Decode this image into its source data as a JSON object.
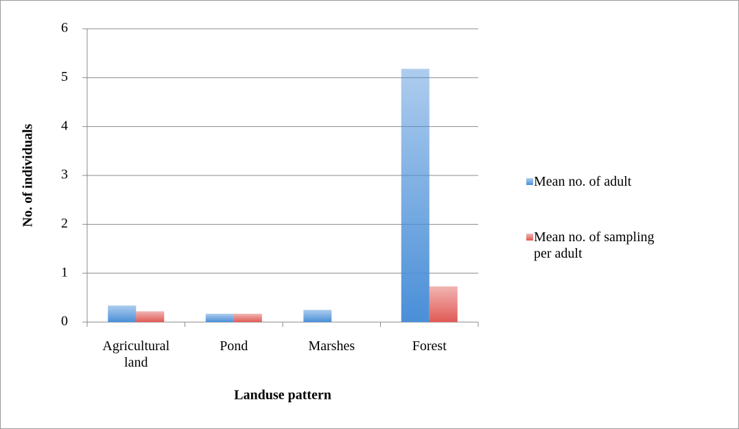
{
  "chart_data": {
    "type": "bar",
    "x_label": "Landuse pattern",
    "y_label": "No. of individuals",
    "categories": [
      "Agricultural land",
      "Pond",
      "Marshes",
      "Forest"
    ],
    "series": [
      {
        "name": "Mean no. of adult",
        "color": "#4a8fd8",
        "values": [
          0.34,
          0.17,
          0.25,
          5.18
        ]
      },
      {
        "name": "Mean no. of sampling per adult",
        "color": "#e05a55",
        "values": [
          0.22,
          0.17,
          0,
          0.73
        ]
      }
    ],
    "ylim": [
      0,
      6
    ],
    "yticks": [
      0,
      1,
      2,
      3,
      4,
      5,
      6
    ],
    "grid": true,
    "legend": "right"
  }
}
